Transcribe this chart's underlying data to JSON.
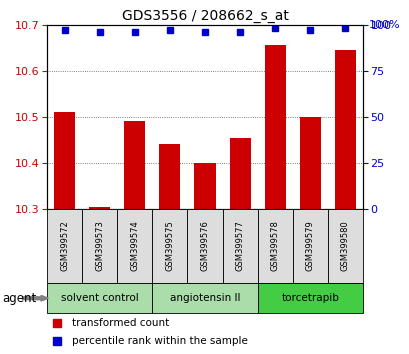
{
  "title": "GDS3556 / 208662_s_at",
  "samples": [
    "GSM399572",
    "GSM399573",
    "GSM399574",
    "GSM399575",
    "GSM399576",
    "GSM399577",
    "GSM399578",
    "GSM399579",
    "GSM399580"
  ],
  "transformed_counts": [
    10.51,
    10.305,
    10.49,
    10.44,
    10.4,
    10.455,
    10.655,
    10.5,
    10.645
  ],
  "percentile_ranks": [
    97,
    96,
    96,
    97,
    96,
    96,
    98,
    97,
    98
  ],
  "ylim_left": [
    10.3,
    10.7
  ],
  "ylim_right": [
    0,
    100
  ],
  "yticks_left": [
    10.3,
    10.4,
    10.5,
    10.6,
    10.7
  ],
  "yticks_right": [
    0,
    25,
    50,
    75,
    100
  ],
  "bar_color": "#cc0000",
  "dot_color": "#0000cc",
  "groups": [
    {
      "label": "solvent control",
      "indices": [
        0,
        1,
        2
      ],
      "color": "#aaddaa"
    },
    {
      "label": "angiotensin II",
      "indices": [
        3,
        4,
        5
      ],
      "color": "#aaddaa"
    },
    {
      "label": "torcetrapib",
      "indices": [
        6,
        7,
        8
      ],
      "color": "#44cc44"
    }
  ],
  "agent_label": "agent",
  "legend_items": [
    {
      "label": "transformed count",
      "color": "#cc0000"
    },
    {
      "label": "percentile rank within the sample",
      "color": "#0000cc"
    }
  ],
  "background_color": "#ffffff",
  "plot_bg_color": "#ffffff",
  "sample_box_color": "#dddddd",
  "grid_color": "#555555",
  "tick_label_color_left": "#cc0000",
  "tick_label_color_right": "#0000cc"
}
